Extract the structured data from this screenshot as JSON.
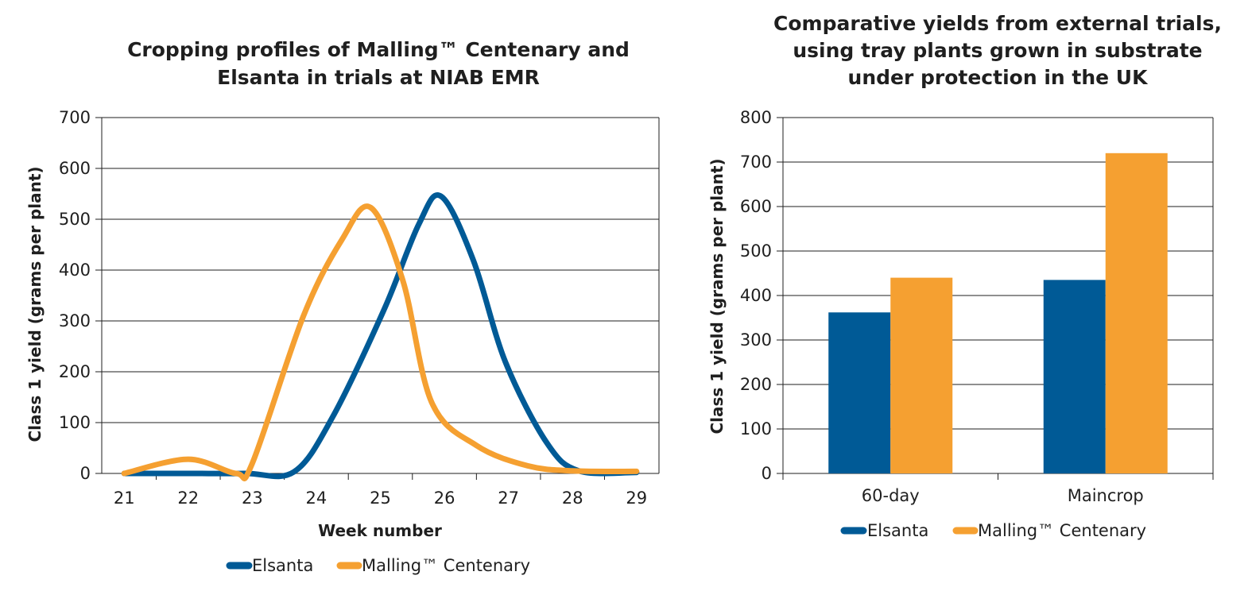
{
  "colors": {
    "elsanta": "#005a96",
    "malling": "#f5a031",
    "grid": "#1f1f1f"
  },
  "chart_data": [
    {
      "type": "line",
      "title_lines": [
        "Cropping profiles of Malling™ Centenary and",
        "Elsanta in trials at NIAB EMR"
      ],
      "xlabel": "Week number",
      "ylabel": "Class 1 yield (grams per plant)",
      "xlim": [
        20.65,
        29.35
      ],
      "ylim": [
        0,
        700
      ],
      "x_ticks": [
        21,
        22,
        23,
        24,
        25,
        26,
        27,
        28,
        29
      ],
      "y_ticks": [
        0,
        100,
        200,
        300,
        400,
        500,
        600,
        700
      ],
      "grid": true,
      "legend_position": "bottom",
      "series": [
        {
          "name": "Elsanta",
          "x": [
            21,
            22,
            22.9,
            23.65,
            24.25,
            25.05,
            25.6,
            25.95,
            26.45,
            26.95,
            27.6,
            28.1,
            29
          ],
          "y": [
            0,
            0,
            0,
            3,
            110,
            320,
            490,
            545,
            420,
            220,
            60,
            5,
            2
          ]
        },
        {
          "name": "Malling™ Centenary",
          "x": [
            21,
            22,
            22.75,
            23,
            23.8,
            24.4,
            24.85,
            25.35,
            25.8,
            26.5,
            27.3,
            28,
            29
          ],
          "y": [
            0,
            28,
            0,
            20,
            310,
            460,
            523,
            380,
            140,
            55,
            15,
            5,
            4
          ]
        }
      ]
    },
    {
      "type": "bar",
      "title_lines": [
        "Comparative yields from external trials,",
        "using tray plants grown in substrate",
        "under protection in the UK"
      ],
      "xlabel": "",
      "ylabel": "Class 1 yield (grams per plant)",
      "ylim": [
        0,
        800
      ],
      "y_ticks": [
        0,
        100,
        200,
        300,
        400,
        500,
        600,
        700,
        800
      ],
      "grid": true,
      "legend_position": "bottom",
      "categories": [
        "60-day",
        "Maincrop"
      ],
      "series": [
        {
          "name": "Elsanta",
          "values": [
            362,
            435
          ]
        },
        {
          "name": "Malling™ Centenary",
          "values": [
            440,
            720
          ]
        }
      ]
    }
  ]
}
